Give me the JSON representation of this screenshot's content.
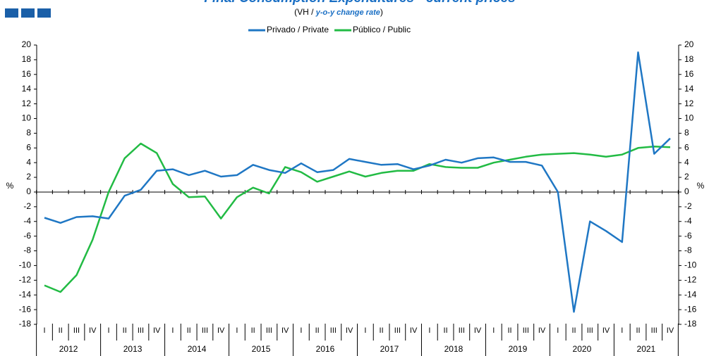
{
  "chart_data": {
    "type": "line",
    "title": "Final Consumption Expenditures - current prices",
    "subtitle": [
      "(VH / ",
      "y-o-y change rate",
      ")"
    ],
    "y_label": "%",
    "y2_label": "%",
    "categories": [
      "I",
      "II",
      "III",
      "IV",
      "I",
      "II",
      "III",
      "IV",
      "I",
      "II",
      "III",
      "IV",
      "I",
      "II",
      "III",
      "IV",
      "I",
      "II",
      "III",
      "IV",
      "I",
      "II",
      "III",
      "IV",
      "I",
      "II",
      "III",
      "IV",
      "I",
      "II",
      "III",
      "IV",
      "I",
      "II",
      "III",
      "IV",
      "I",
      "II",
      "III",
      "IV"
    ],
    "years": [
      "2012",
      "2013",
      "2014",
      "2015",
      "2016",
      "2017",
      "2018",
      "2019",
      "2020",
      "2021"
    ],
    "series": [
      {
        "name": "Privado / Private",
        "color": "#1f77c4",
        "values": [
          -3.5,
          -4.2,
          -3.4,
          -3.3,
          -3.6,
          -0.5,
          0.3,
          2.9,
          3.1,
          2.3,
          2.9,
          2.1,
          2.3,
          3.7,
          3.0,
          2.6,
          3.9,
          2.7,
          3.0,
          4.5,
          4.1,
          3.7,
          3.8,
          3.1,
          3.6,
          4.4,
          4.0,
          4.6,
          4.7,
          4.1,
          4.1,
          3.6,
          0.0,
          -16.3,
          -4.0,
          -5.3,
          -6.8,
          19.0,
          5.2,
          7.3
        ]
      },
      {
        "name": "Público / Public",
        "color": "#22bb44",
        "values": [
          -12.7,
          -13.6,
          -11.3,
          -6.5,
          0.0,
          4.6,
          6.6,
          5.3,
          1.1,
          -0.7,
          -0.6,
          -3.6,
          -0.7,
          0.6,
          -0.2,
          3.4,
          2.7,
          1.4,
          2.1,
          2.8,
          2.1,
          2.6,
          2.9,
          2.9,
          3.8,
          3.4,
          3.3,
          3.3,
          4.0,
          4.4,
          4.8,
          5.1,
          5.2,
          5.3,
          5.1,
          4.8,
          5.1,
          6.0,
          6.2,
          6.1
        ]
      }
    ],
    "ylim": [
      -18,
      20
    ],
    "yticks": [
      -18,
      -16,
      -14,
      -12,
      -10,
      -8,
      -6,
      -4,
      -2,
      0,
      2,
      4,
      6,
      8,
      10,
      12,
      14,
      16,
      18,
      20
    ],
    "y2lim": [
      -18,
      20
    ],
    "y2ticks": [
      -18,
      -16,
      -14,
      -12,
      -10,
      -8,
      -6,
      -4,
      -2,
      0,
      2,
      4,
      6,
      8,
      10,
      12,
      14,
      16,
      18,
      20
    ],
    "legend": "top"
  }
}
